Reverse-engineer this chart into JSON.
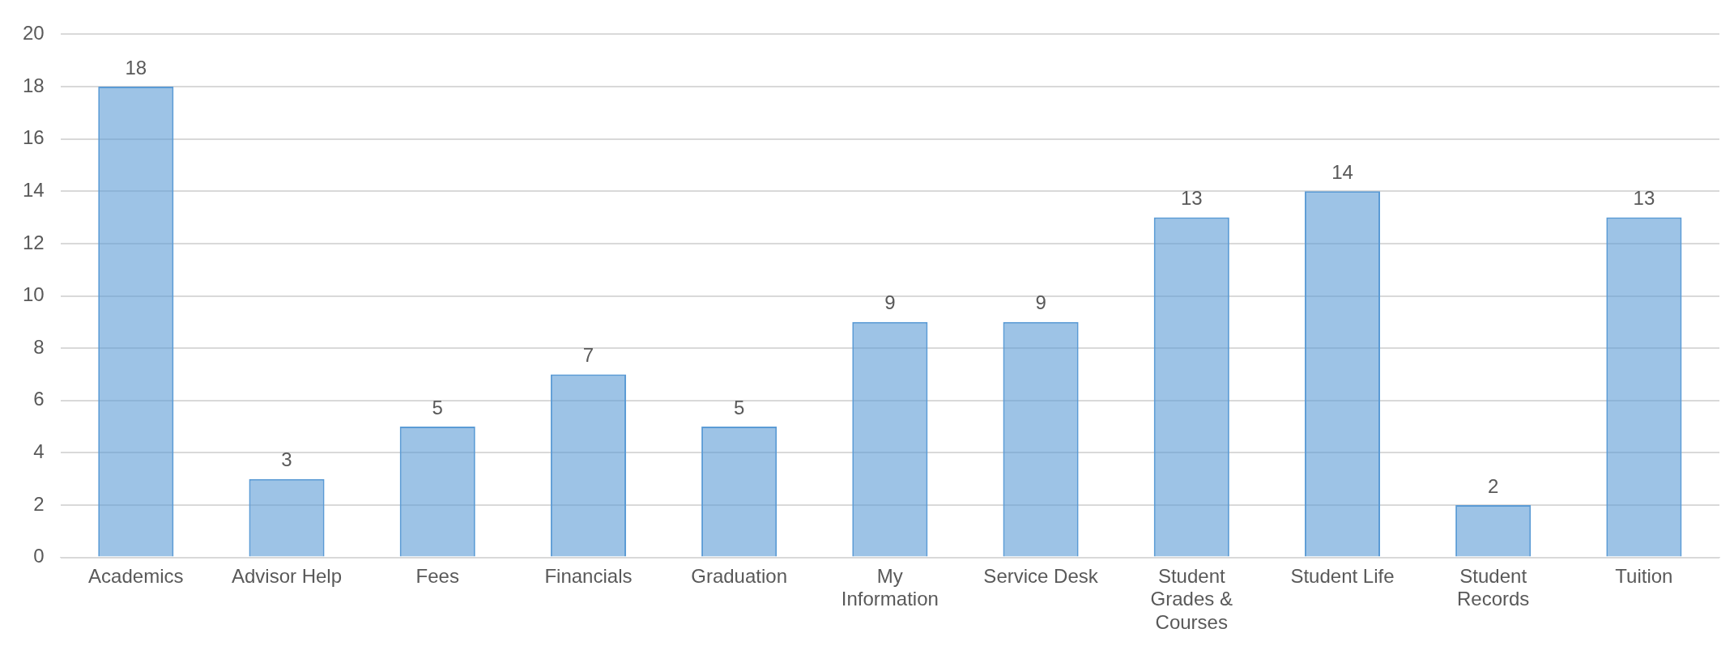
{
  "chart_data": {
    "type": "bar",
    "categories": [
      "Academics",
      "Advisor Help",
      "Fees",
      "Financials",
      "Graduation",
      "My Information",
      "Service Desk",
      "Student Grades & Courses",
      "Student Life",
      "Student Records",
      "Tuition"
    ],
    "values": [
      18,
      3,
      5,
      7,
      5,
      9,
      9,
      13,
      14,
      2,
      13
    ],
    "color": "#5b9bd5",
    "ylim": [
      0,
      20
    ],
    "yticks": [
      0,
      2,
      4,
      6,
      8,
      10,
      12,
      14,
      16,
      18,
      20
    ],
    "grid": "y",
    "data_labels": true
  }
}
